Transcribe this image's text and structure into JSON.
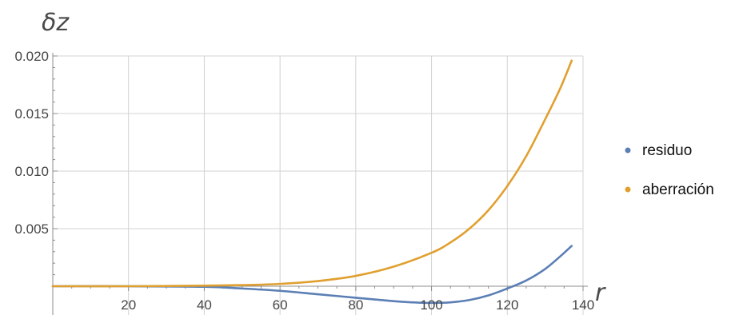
{
  "chart_data": {
    "type": "line",
    "title": "",
    "xlabel": "r",
    "ylabel": "δz",
    "xlim": [
      0,
      140
    ],
    "ylim": [
      -0.0025,
      0.0205
    ],
    "grid": true,
    "legend_position": "right",
    "x_ticks": [
      {
        "value": 20,
        "label": "20"
      },
      {
        "value": 40,
        "label": "40"
      },
      {
        "value": 60,
        "label": "60"
      },
      {
        "value": 80,
        "label": "80"
      },
      {
        "value": 100,
        "label": "100"
      },
      {
        "value": 120,
        "label": "120"
      },
      {
        "value": 140,
        "label": "140"
      }
    ],
    "y_ticks": [
      {
        "value": 0.005,
        "label": "0.005"
      },
      {
        "value": 0.01,
        "label": "0.010"
      },
      {
        "value": 0.015,
        "label": "0.015"
      },
      {
        "value": 0.02,
        "label": "0.020"
      }
    ],
    "series": [
      {
        "name": "residuo",
        "color": "#5b7fb5",
        "x": [
          0,
          20,
          40,
          50,
          60,
          70,
          80,
          90,
          95,
          100,
          105,
          110,
          115,
          120,
          125,
          130,
          134,
          137
        ],
        "y": [
          0,
          0,
          -5e-05,
          -0.0002,
          -0.0004,
          -0.0007,
          -0.001,
          -0.0013,
          -0.0014,
          -0.00145,
          -0.0014,
          -0.0012,
          -0.0008,
          -0.0002,
          0.0005,
          0.0015,
          0.0026,
          0.0035
        ]
      },
      {
        "name": "aberración",
        "color": "#e0a030",
        "x": [
          0,
          20,
          40,
          50,
          60,
          70,
          80,
          90,
          100,
          105,
          110,
          115,
          120,
          125,
          130,
          134,
          137
        ],
        "y": [
          0,
          0,
          5e-05,
          0.0001,
          0.0002,
          0.00045,
          0.0009,
          0.0017,
          0.0029,
          0.0038,
          0.005,
          0.0066,
          0.0087,
          0.0113,
          0.0145,
          0.0172,
          0.0196
        ]
      }
    ]
  }
}
